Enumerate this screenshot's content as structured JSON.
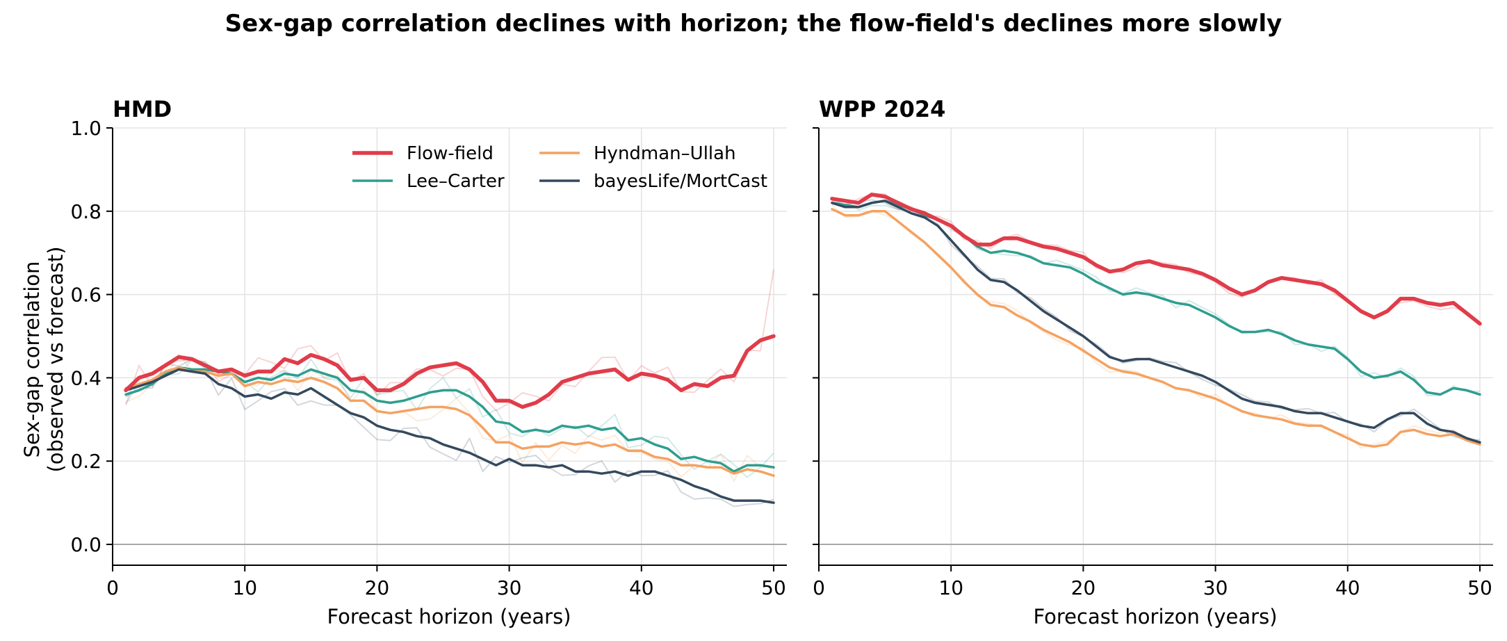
{
  "figure": {
    "suptitle": "Sex-gap correlation declines with horizon; the flow-field's declines more slowly"
  },
  "colors": {
    "Flow-field": "#e03c4a",
    "Lee–Carter": "#2e9e8f",
    "Hyndman–Ullah": "#f4a261",
    "bayesLife/MortCast": "#34495e"
  },
  "legend": {
    "location": "upper-center of left panel",
    "columns": 2,
    "entries": [
      "Flow-field",
      "Lee–Carter",
      "Hyndman–Ullah",
      "bayesLife/MortCast"
    ]
  },
  "chart_data": [
    {
      "type": "line",
      "title": "HMD",
      "xlabel": "Forecast horizon (years)",
      "ylabel": "Sex-gap correlation\n(observed vs forecast)",
      "xlim": [
        0,
        51
      ],
      "ylim": [
        -0.05,
        1.0
      ],
      "xticks": [
        0,
        10,
        20,
        30,
        40,
        50
      ],
      "yticks": [
        0.0,
        0.2,
        0.4,
        0.6,
        0.8,
        1.0
      ],
      "grid": true,
      "reference_line_y": 0.0,
      "x": [
        1,
        2,
        3,
        4,
        5,
        6,
        7,
        8,
        9,
        10,
        11,
        12,
        13,
        14,
        15,
        16,
        17,
        18,
        19,
        20,
        21,
        22,
        23,
        24,
        25,
        26,
        27,
        28,
        29,
        30,
        31,
        32,
        33,
        34,
        35,
        36,
        37,
        38,
        39,
        40,
        41,
        42,
        43,
        44,
        45,
        46,
        47,
        48,
        49,
        50
      ],
      "series": [
        {
          "name": "Flow-field",
          "values": [
            0.37,
            0.4,
            0.41,
            0.43,
            0.45,
            0.445,
            0.43,
            0.415,
            0.42,
            0.405,
            0.415,
            0.415,
            0.445,
            0.435,
            0.455,
            0.445,
            0.43,
            0.395,
            0.4,
            0.37,
            0.37,
            0.385,
            0.41,
            0.425,
            0.43,
            0.435,
            0.42,
            0.39,
            0.345,
            0.345,
            0.33,
            0.34,
            0.36,
            0.39,
            0.4,
            0.41,
            0.415,
            0.42,
            0.395,
            0.41,
            0.405,
            0.395,
            0.37,
            0.385,
            0.38,
            0.4,
            0.405,
            0.465,
            0.49,
            0.5
          ]
        },
        {
          "name": "Lee–Carter",
          "values": [
            0.36,
            0.37,
            0.385,
            0.41,
            0.425,
            0.42,
            0.42,
            0.415,
            0.41,
            0.39,
            0.4,
            0.395,
            0.41,
            0.405,
            0.42,
            0.41,
            0.4,
            0.37,
            0.365,
            0.345,
            0.34,
            0.345,
            0.355,
            0.365,
            0.37,
            0.37,
            0.355,
            0.33,
            0.295,
            0.29,
            0.27,
            0.275,
            0.27,
            0.285,
            0.28,
            0.285,
            0.275,
            0.28,
            0.25,
            0.255,
            0.24,
            0.23,
            0.205,
            0.21,
            0.2,
            0.195,
            0.175,
            0.19,
            0.19,
            0.185
          ]
        },
        {
          "name": "Hyndman–Ullah",
          "values": [
            0.375,
            0.385,
            0.395,
            0.415,
            0.425,
            0.415,
            0.415,
            0.405,
            0.41,
            0.38,
            0.39,
            0.385,
            0.395,
            0.39,
            0.4,
            0.39,
            0.375,
            0.345,
            0.345,
            0.32,
            0.315,
            0.32,
            0.325,
            0.33,
            0.33,
            0.325,
            0.31,
            0.28,
            0.245,
            0.245,
            0.23,
            0.235,
            0.235,
            0.245,
            0.24,
            0.245,
            0.235,
            0.24,
            0.225,
            0.225,
            0.21,
            0.205,
            0.19,
            0.19,
            0.185,
            0.185,
            0.17,
            0.18,
            0.175,
            0.165
          ]
        },
        {
          "name": "bayesLife/MortCast",
          "values": [
            0.37,
            0.38,
            0.39,
            0.405,
            0.42,
            0.415,
            0.41,
            0.385,
            0.375,
            0.355,
            0.36,
            0.35,
            0.365,
            0.36,
            0.375,
            0.355,
            0.335,
            0.315,
            0.305,
            0.285,
            0.275,
            0.27,
            0.26,
            0.255,
            0.24,
            0.23,
            0.22,
            0.205,
            0.19,
            0.205,
            0.19,
            0.19,
            0.185,
            0.19,
            0.175,
            0.175,
            0.17,
            0.175,
            0.165,
            0.175,
            0.175,
            0.165,
            0.155,
            0.14,
            0.13,
            0.115,
            0.105,
            0.105,
            0.105,
            0.1
          ]
        }
      ]
    },
    {
      "type": "line",
      "title": "WPP 2024",
      "xlabel": "Forecast horizon (years)",
      "ylabel": "",
      "xlim": [
        0,
        51
      ],
      "ylim": [
        -0.05,
        1.0
      ],
      "xticks": [
        0,
        10,
        20,
        30,
        40,
        50
      ],
      "yticks": [
        0.0,
        0.2,
        0.4,
        0.6,
        0.8,
        1.0
      ],
      "grid": true,
      "reference_line_y": 0.0,
      "x": [
        1,
        2,
        3,
        4,
        5,
        6,
        7,
        8,
        9,
        10,
        11,
        12,
        13,
        14,
        15,
        16,
        17,
        18,
        19,
        20,
        21,
        22,
        23,
        24,
        25,
        26,
        27,
        28,
        29,
        30,
        31,
        32,
        33,
        34,
        35,
        36,
        37,
        38,
        39,
        40,
        41,
        42,
        43,
        44,
        45,
        46,
        47,
        48,
        49,
        50
      ],
      "series": [
        {
          "name": "Flow-field",
          "values": [
            0.83,
            0.825,
            0.82,
            0.84,
            0.835,
            0.82,
            0.805,
            0.795,
            0.78,
            0.765,
            0.74,
            0.72,
            0.72,
            0.735,
            0.735,
            0.725,
            0.715,
            0.71,
            0.7,
            0.69,
            0.67,
            0.655,
            0.66,
            0.675,
            0.68,
            0.67,
            0.665,
            0.66,
            0.65,
            0.635,
            0.615,
            0.6,
            0.61,
            0.63,
            0.64,
            0.635,
            0.63,
            0.625,
            0.61,
            0.585,
            0.56,
            0.545,
            0.56,
            0.59,
            0.59,
            0.58,
            0.575,
            0.58,
            0.555,
            0.53
          ]
        },
        {
          "name": "Lee–Carter",
          "values": [
            0.82,
            0.815,
            0.81,
            0.82,
            0.825,
            0.815,
            0.805,
            0.79,
            0.78,
            0.765,
            0.74,
            0.715,
            0.7,
            0.705,
            0.7,
            0.69,
            0.675,
            0.67,
            0.665,
            0.65,
            0.63,
            0.615,
            0.6,
            0.605,
            0.6,
            0.59,
            0.58,
            0.575,
            0.56,
            0.545,
            0.525,
            0.51,
            0.51,
            0.515,
            0.505,
            0.49,
            0.48,
            0.475,
            0.47,
            0.445,
            0.415,
            0.4,
            0.405,
            0.415,
            0.395,
            0.365,
            0.36,
            0.375,
            0.37,
            0.36
          ]
        },
        {
          "name": "Hyndman–Ullah",
          "values": [
            0.805,
            0.79,
            0.79,
            0.8,
            0.8,
            0.775,
            0.75,
            0.725,
            0.695,
            0.665,
            0.63,
            0.6,
            0.575,
            0.57,
            0.55,
            0.535,
            0.515,
            0.5,
            0.485,
            0.465,
            0.445,
            0.425,
            0.415,
            0.41,
            0.4,
            0.39,
            0.375,
            0.37,
            0.36,
            0.35,
            0.335,
            0.32,
            0.31,
            0.305,
            0.3,
            0.29,
            0.285,
            0.285,
            0.27,
            0.255,
            0.24,
            0.235,
            0.24,
            0.27,
            0.275,
            0.265,
            0.26,
            0.265,
            0.25,
            0.24
          ]
        },
        {
          "name": "bayesLife/MortCast",
          "values": [
            0.82,
            0.81,
            0.81,
            0.82,
            0.825,
            0.81,
            0.795,
            0.785,
            0.765,
            0.73,
            0.695,
            0.66,
            0.635,
            0.63,
            0.61,
            0.585,
            0.56,
            0.54,
            0.52,
            0.5,
            0.475,
            0.45,
            0.44,
            0.445,
            0.445,
            0.435,
            0.425,
            0.415,
            0.405,
            0.39,
            0.37,
            0.35,
            0.34,
            0.335,
            0.33,
            0.32,
            0.315,
            0.315,
            0.305,
            0.295,
            0.285,
            0.28,
            0.3,
            0.315,
            0.315,
            0.29,
            0.275,
            0.27,
            0.255,
            0.245
          ]
        }
      ]
    }
  ]
}
